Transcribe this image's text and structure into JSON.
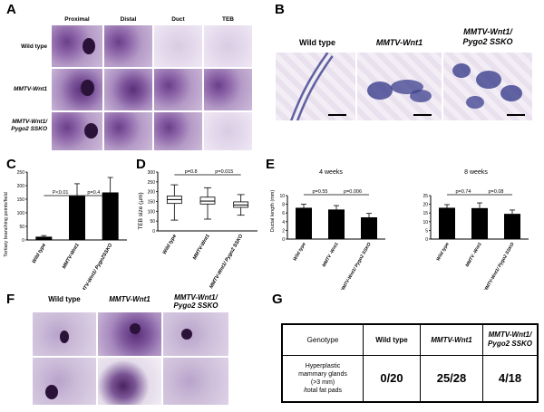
{
  "panel_labels": {
    "a": "A",
    "b": "B",
    "c": "C",
    "d": "D",
    "e": "E",
    "f": "F",
    "g": "G"
  },
  "panel_a": {
    "columns": [
      "Proximal",
      "Distal",
      "Duct",
      "TEB"
    ],
    "rows": [
      {
        "line1": "Wild type",
        "line2": ""
      },
      {
        "line1": "MMTV-Wnt1",
        "line2": ""
      },
      {
        "line1": "MMTV-Wnt1/",
        "line2": "Pygo2 SSKO"
      }
    ]
  },
  "panel_b": {
    "headers": [
      {
        "line1": "Wild type",
        "line2": ""
      },
      {
        "line1": "MMTV-Wnt1",
        "line2": ""
      },
      {
        "line1": "MMTV-Wnt1/",
        "line2": "Pygo2 SSKO"
      }
    ]
  },
  "chart_data": [
    {
      "type": "bar",
      "panel": "C",
      "categories": [
        "Wild type",
        "MMTV-Wnt1",
        "MMTV-Wnt1/ Pygo2SSKO"
      ],
      "values": [
        12,
        162,
        175
      ],
      "errors": [
        4,
        45,
        55
      ],
      "ylabel": "Tertiary branching points/field",
      "ylim": [
        0,
        250
      ],
      "yticks": [
        0,
        50,
        100,
        150,
        200,
        250
      ],
      "comparisons": [
        {
          "from": 0,
          "to": 1,
          "label": "P<0.01"
        },
        {
          "from": 1,
          "to": 2,
          "label": "p=0.4"
        }
      ],
      "color": "#000000"
    },
    {
      "type": "box",
      "panel": "D",
      "categories": [
        "Wild type",
        "MMTV-Wnt1",
        "MMTV-Wnt1/ Pygo2 SSKO"
      ],
      "boxes": [
        {
          "min": 55,
          "q1": 140,
          "median": 160,
          "q3": 178,
          "max": 235
        },
        {
          "min": 60,
          "q1": 137,
          "median": 152,
          "q3": 172,
          "max": 220
        },
        {
          "min": 80,
          "q1": 120,
          "median": 132,
          "q3": 148,
          "max": 185
        }
      ],
      "ylabel": "TEB size (µm)",
      "ylim": [
        0,
        300
      ],
      "yticks": [
        0,
        50,
        100,
        150,
        200,
        250,
        300
      ],
      "comparisons": [
        {
          "from": 0,
          "to": 1,
          "label": "p=0.8"
        },
        {
          "from": 1,
          "to": 2,
          "label": "p=0.015"
        }
      ]
    },
    {
      "type": "bar",
      "panel": "E",
      "title": "4 weeks",
      "categories": [
        "Wild type",
        "MMTV -Wnt1",
        "MMTV-Wnt1/ Pygo2 SSKO"
      ],
      "values": [
        7.2,
        6.8,
        5.0
      ],
      "errors": [
        0.8,
        0.9,
        0.9
      ],
      "ylabel": "Ductal length (mm)",
      "ylim": [
        0,
        10
      ],
      "yticks": [
        0,
        2,
        4,
        6,
        8,
        10
      ],
      "comparisons": [
        {
          "from": 0,
          "to": 1,
          "label": "p=0.55"
        },
        {
          "from": 1,
          "to": 2,
          "label": "p=0.006"
        }
      ]
    },
    {
      "type": "bar",
      "panel": "E",
      "title": "8 weeks",
      "categories": [
        "Wild type",
        "MMTV -Wnt1",
        "MMTV-Wnt1/ Pygo2 SSKO"
      ],
      "values": [
        18,
        17.8,
        14.5
      ],
      "errors": [
        1.8,
        3,
        2.2
      ],
      "ylabel": "",
      "ylim": [
        0,
        25
      ],
      "yticks": [
        0,
        5,
        10,
        15,
        20,
        25
      ],
      "comparisons": [
        {
          "from": 0,
          "to": 1,
          "label": "p=0.74"
        },
        {
          "from": 1,
          "to": 2,
          "label": "p=0.08"
        }
      ]
    }
  ],
  "panel_f": {
    "headers": [
      {
        "line1": "Wild type",
        "line2": ""
      },
      {
        "line1": "MMTV-Wnt1",
        "line2": ""
      },
      {
        "line1": "MMTV-Wnt1/",
        "line2": "Pygo2 SSKO"
      }
    ]
  },
  "panel_g": {
    "header": {
      "genotype": "Genotype",
      "col1": "Wild type",
      "col2": "MMTV-Wnt1",
      "col3a": "MMTV-Wnt1/",
      "col3b": "Pygo2 SSKO"
    },
    "row": {
      "l1": "Hyperplastic",
      "l2": "mammary glands",
      "l3": "(>3 mm)",
      "l4": "/total fat pads",
      "v1": "0/20",
      "v2": "25/28",
      "v3": "4/18"
    }
  }
}
